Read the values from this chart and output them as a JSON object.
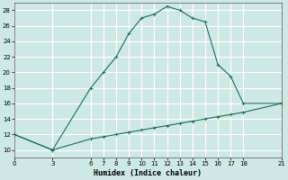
{
  "xlabel": "Humidex (Indice chaleur)",
  "bg_color": "#cee9e5",
  "grid_color": "#ffffff",
  "line_color": "#1a6b5a",
  "xlim": [
    0,
    21
  ],
  "ylim": [
    9,
    29
  ],
  "xticks": [
    0,
    3,
    6,
    7,
    8,
    9,
    10,
    11,
    12,
    13,
    14,
    15,
    16,
    17,
    18,
    21
  ],
  "yticks": [
    10,
    12,
    14,
    16,
    18,
    20,
    22,
    24,
    26,
    28
  ],
  "curve_x": [
    0,
    3,
    6,
    7,
    8,
    9,
    10,
    11,
    12,
    13,
    14,
    15,
    16,
    17,
    18,
    21
  ],
  "curve_y": [
    12,
    10,
    18,
    20,
    22,
    25,
    27,
    27.5,
    28.5,
    28,
    27,
    26.5,
    21,
    19.5,
    16,
    16
  ],
  "line_x": [
    0,
    3,
    6,
    7,
    8,
    9,
    10,
    11,
    12,
    13,
    14,
    15,
    16,
    17,
    18,
    21
  ],
  "line_y": [
    12,
    10,
    11.43,
    11.71,
    12.0,
    12.29,
    12.57,
    12.86,
    13.14,
    13.43,
    13.71,
    14.0,
    14.29,
    14.57,
    14.86,
    16.0
  ]
}
